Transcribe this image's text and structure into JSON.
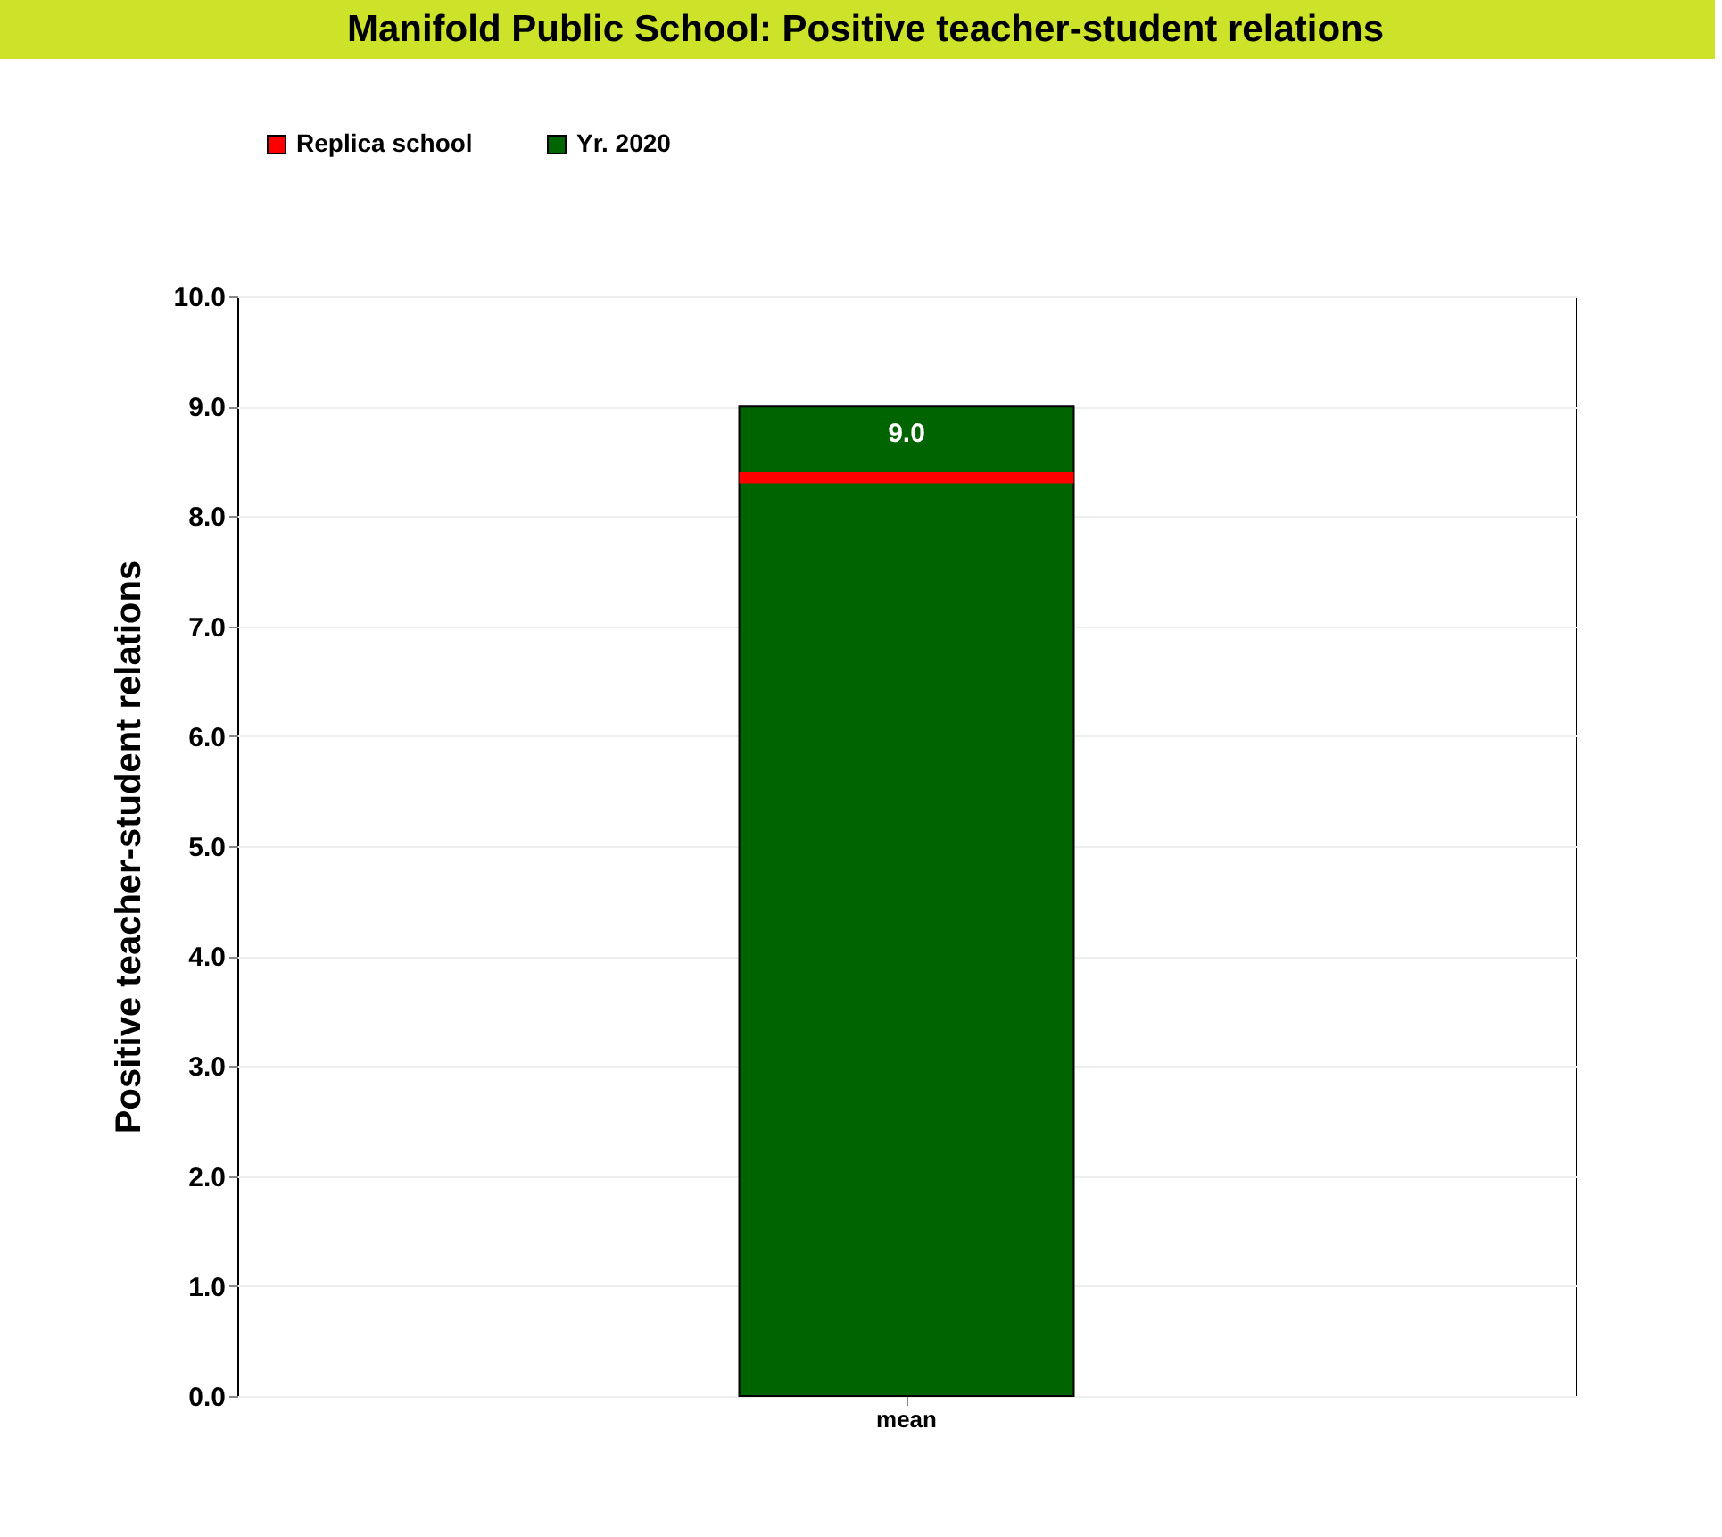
{
  "chart_data": {
    "type": "bar",
    "title": "Manifold Public School: Positive teacher-student relations",
    "ylabel": "Positive teacher-student relations",
    "categories": [
      "mean"
    ],
    "series": [
      {
        "name": "Replica school",
        "color": "#ff0000",
        "base": [
          8.3
        ],
        "values": [
          0.1
        ]
      },
      {
        "name": "Yr. 2020",
        "color": "#006400",
        "values": [
          9.0
        ],
        "value_labels": [
          "9.0"
        ]
      }
    ],
    "ylim": [
      0,
      10
    ],
    "yticks": [
      {
        "value": 0,
        "label": "0.0"
      },
      {
        "value": 1,
        "label": "1.0"
      },
      {
        "value": 2,
        "label": "2.0"
      },
      {
        "value": 3,
        "label": "3.0"
      },
      {
        "value": 4,
        "label": "4.0"
      },
      {
        "value": 5,
        "label": "5.0"
      },
      {
        "value": 6,
        "label": "6.0"
      },
      {
        "value": 7,
        "label": "7.0"
      },
      {
        "value": 8,
        "label": "8.0"
      },
      {
        "value": 9,
        "label": "9.0"
      },
      {
        "value": 10,
        "label": "10.0"
      }
    ],
    "grid": "y",
    "legend": "top left"
  }
}
